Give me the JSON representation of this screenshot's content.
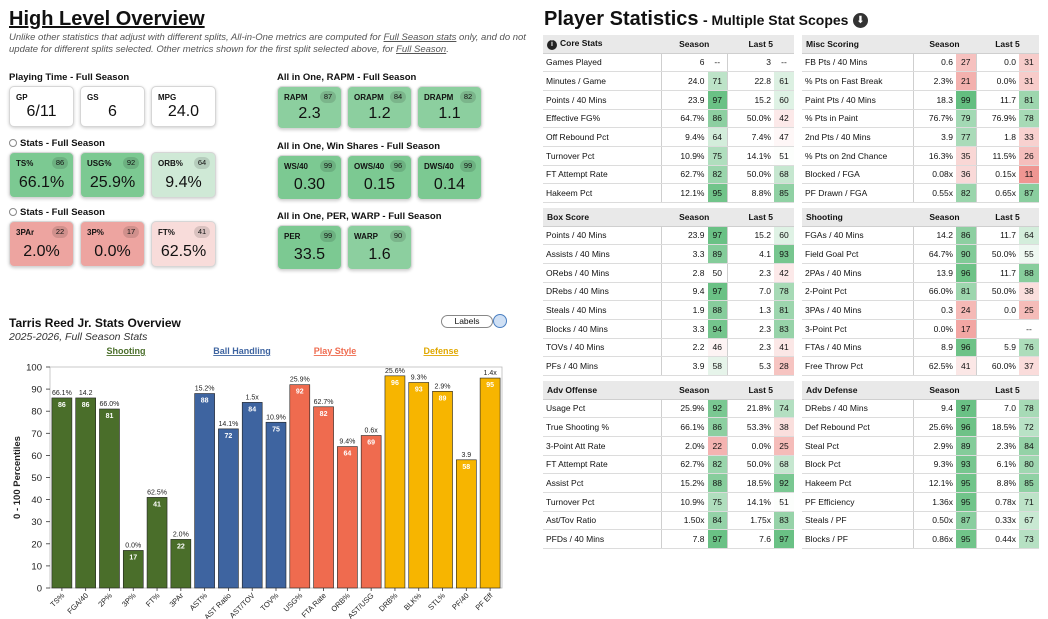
{
  "left": {
    "title": "High Level Overview",
    "note_parts": [
      "Unlike other statistics that adjust with different splits, All-in-One metrics are computed for ",
      "Full Season stats",
      " only, and do not update for different splits selected. Other metrics shown for the first split selected above, for ",
      "Full Season",
      "."
    ],
    "playing_time": {
      "label": "Playing Time - Full Season",
      "cards": [
        {
          "label": "GP",
          "value": "6/11"
        },
        {
          "label": "GS",
          "value": "6"
        },
        {
          "label": "MPG",
          "value": "24.0"
        }
      ]
    },
    "stats1": {
      "label": "Stats - Full Season",
      "cards": [
        {
          "label": "TS%",
          "pct": "86",
          "value": "66.1%"
        },
        {
          "label": "USG%",
          "pct": "92",
          "value": "25.9%"
        },
        {
          "label": "ORB%",
          "pct": "64",
          "value": "9.4%"
        }
      ]
    },
    "stats2": {
      "label": "Stats - Full Season",
      "cards": [
        {
          "label": "3PAr",
          "pct": "22",
          "value": "2.0%"
        },
        {
          "label": "3P%",
          "pct": "17",
          "value": "0.0%"
        },
        {
          "label": "FT%",
          "pct": "41",
          "value": "62.5%"
        }
      ]
    },
    "rapm": {
      "label": "All in One, RAPM - Full Season",
      "cards": [
        {
          "label": "RAPM",
          "pct": "87",
          "value": "2.3"
        },
        {
          "label": "ORAPM",
          "pct": "84",
          "value": "1.2"
        },
        {
          "label": "DRAPM",
          "pct": "82",
          "value": "1.1"
        }
      ]
    },
    "ws": {
      "label": "All in One, Win Shares - Full Season",
      "cards": [
        {
          "label": "WS/40",
          "pct": "99",
          "value": "0.30"
        },
        {
          "label": "OWS/40",
          "pct": "96",
          "value": "0.15"
        },
        {
          "label": "DWS/40",
          "pct": "99",
          "value": "0.14"
        }
      ]
    },
    "per": {
      "label": "All in One, PER, WARP - Full Season",
      "cards": [
        {
          "label": "PER",
          "pct": "99",
          "value": "33.5"
        },
        {
          "label": "WARP",
          "pct": "90",
          "value": "1.6"
        }
      ]
    }
  },
  "chart_data": {
    "type": "bar",
    "title": "Tarris Reed Jr. Stats Overview",
    "subtitle": "2025-2026, Full Season Stats",
    "ylabel": "0 - 100 Percentiles",
    "xlabel": "",
    "ylim": [
      0,
      100
    ],
    "yticks": [
      0,
      10,
      20,
      30,
      40,
      50,
      60,
      70,
      80,
      90,
      100
    ],
    "labels_toggle": "Labels",
    "groups": [
      {
        "name": "Shooting",
        "color": "#4a6e2a",
        "label_color": "#4a6e2a"
      },
      {
        "name": "Ball Handling",
        "color": "#3e64a0",
        "label_color": "#3e64a0"
      },
      {
        "name": "Play Style",
        "color": "#ef6b4f",
        "label_color": "#ef6b4f"
      },
      {
        "name": "Defense",
        "color": "#f7b500",
        "label_color": "#e0a800"
      }
    ],
    "categories": [
      "TS%",
      "FGA/40",
      "2P%",
      "3P%",
      "FT%",
      "3PAr",
      "AST%",
      "AST Ratio",
      "AST/TOV",
      "TOV%",
      "USG%",
      "FTA Rate",
      "ORB%",
      "AST/USG",
      "DRB%",
      "BLK%",
      "STL%",
      "PF/40",
      "PF Eff"
    ],
    "group_index": [
      0,
      0,
      0,
      0,
      0,
      0,
      1,
      1,
      1,
      1,
      2,
      2,
      2,
      2,
      3,
      3,
      3,
      3,
      3
    ],
    "values": [
      86,
      86,
      81,
      17,
      41,
      22,
      88,
      72,
      84,
      75,
      92,
      82,
      64,
      69,
      96,
      93,
      89,
      58,
      95
    ],
    "raw_labels": [
      "66.1%",
      "14.2",
      "66.0%",
      "0.0%",
      "62.5%",
      "2.0%",
      "15.2%",
      "14.1%",
      "1.5x",
      "10.9%",
      "25.9%",
      "62.7%",
      "9.4%",
      "0.6x",
      "25.6%",
      "9.3%",
      "2.9%",
      "3.9",
      "1.4x"
    ]
  },
  "right": {
    "title": "Player Statistics",
    "subtitle": "- Multiple Stat Scopes",
    "download_icon": "download-icon",
    "tables": [
      {
        "title": "Core Stats",
        "info_icon": true,
        "season": "Season",
        "last5": "Last 5",
        "rows": [
          [
            "Games Played",
            "6",
            "",
            "3",
            ""
          ],
          [
            "Minutes / Game",
            "24.0",
            "71",
            "22.8",
            "61"
          ],
          [
            "Points / 40 Mins",
            "23.9",
            "97",
            "15.2",
            "60"
          ],
          [
            "Effective FG%",
            "64.7%",
            "86",
            "50.0%",
            "42"
          ],
          [
            "Off Rebound Pct",
            "9.4%",
            "64",
            "7.4%",
            "47"
          ],
          [
            "Turnover Pct",
            "10.9%",
            "75",
            "14.1%",
            "51"
          ],
          [
            "FT Attempt Rate",
            "62.7%",
            "82",
            "50.0%",
            "68"
          ],
          [
            "Hakeem Pct",
            "12.1%",
            "95",
            "8.8%",
            "85"
          ]
        ]
      },
      {
        "title": "Misc Scoring",
        "info_icon": false,
        "season": "Season",
        "last5": "Last 5",
        "rows": [
          [
            "FB Pts / 40 Mins",
            "0.6",
            "27",
            "0.0",
            "31"
          ],
          [
            "% Pts on Fast Break",
            "2.3%",
            "21",
            "0.0%",
            "31"
          ],
          [
            "Paint Pts / 40 Mins",
            "18.3",
            "99",
            "11.7",
            "81"
          ],
          [
            "% Pts in Paint",
            "76.7%",
            "79",
            "76.9%",
            "78"
          ],
          [
            "2nd Pts / 40 Mins",
            "3.9",
            "77",
            "1.8",
            "33"
          ],
          [
            "% Pts on 2nd Chance",
            "16.3%",
            "35",
            "11.5%",
            "26"
          ],
          [
            "Blocked / FGA",
            "0.08x",
            "36",
            "0.15x",
            "11"
          ],
          [
            "PF Drawn / FGA",
            "0.55x",
            "82",
            "0.65x",
            "87"
          ]
        ]
      },
      {
        "title": "Box Score",
        "info_icon": false,
        "season": "Season",
        "last5": "Last 5",
        "rows": [
          [
            "Points / 40 Mins",
            "23.9",
            "97",
            "15.2",
            "60"
          ],
          [
            "Assists / 40 Mins",
            "3.3",
            "89",
            "4.1",
            "93"
          ],
          [
            "ORebs / 40 Mins",
            "2.8",
            "50",
            "2.3",
            "42"
          ],
          [
            "DRebs / 40 Mins",
            "9.4",
            "97",
            "7.0",
            "78"
          ],
          [
            "Steals / 40 Mins",
            "1.9",
            "88",
            "1.3",
            "81"
          ],
          [
            "Blocks / 40 Mins",
            "3.3",
            "94",
            "2.3",
            "83"
          ],
          [
            "TOVs / 40 Mins",
            "2.2",
            "46",
            "2.3",
            "41"
          ],
          [
            "PFs / 40 Mins",
            "3.9",
            "58",
            "5.3",
            "28"
          ]
        ]
      },
      {
        "title": "Shooting",
        "info_icon": false,
        "season": "Season",
        "last5": "Last 5",
        "rows": [
          [
            "FGAs / 40 Mins",
            "14.2",
            "86",
            "11.7",
            "64"
          ],
          [
            "Field Goal Pct",
            "64.7%",
            "90",
            "50.0%",
            "55"
          ],
          [
            "2PAs / 40 Mins",
            "13.9",
            "96",
            "11.7",
            "88"
          ],
          [
            "2-Point Pct",
            "66.0%",
            "81",
            "50.0%",
            "38"
          ],
          [
            "3PAs / 40 Mins",
            "0.3",
            "24",
            "0.0",
            "25"
          ],
          [
            "3-Point Pct",
            "0.0%",
            "17",
            "",
            "--"
          ],
          [
            "FTAs / 40 Mins",
            "8.9",
            "96",
            "5.9",
            "76"
          ],
          [
            "Free Throw Pct",
            "62.5%",
            "41",
            "60.0%",
            "37"
          ]
        ]
      },
      {
        "title": "Adv Offense",
        "info_icon": false,
        "season": "Season",
        "last5": "Last 5",
        "rows": [
          [
            "Usage Pct",
            "25.9%",
            "92",
            "21.8%",
            "74"
          ],
          [
            "True Shooting %",
            "66.1%",
            "86",
            "53.3%",
            "38"
          ],
          [
            "3-Point Att Rate",
            "2.0%",
            "22",
            "0.0%",
            "25"
          ],
          [
            "FT Attempt Rate",
            "62.7%",
            "82",
            "50.0%",
            "68"
          ],
          [
            "Assist Pct",
            "15.2%",
            "88",
            "18.5%",
            "92"
          ],
          [
            "Turnover Pct",
            "10.9%",
            "75",
            "14.1%",
            "51"
          ],
          [
            "Ast/Tov Ratio",
            "1.50x",
            "84",
            "1.75x",
            "83"
          ],
          [
            "PFDs / 40 Mins",
            "7.8",
            "97",
            "7.6",
            "97"
          ]
        ]
      },
      {
        "title": "Adv Defense",
        "info_icon": false,
        "season": "Season",
        "last5": "Last 5",
        "rows": [
          [
            "DRebs / 40 Mins",
            "9.4",
            "97",
            "7.0",
            "78"
          ],
          [
            "Def Rebound Pct",
            "25.6%",
            "96",
            "18.5%",
            "72"
          ],
          [
            "Steal Pct",
            "2.9%",
            "89",
            "2.3%",
            "84"
          ],
          [
            "Block Pct",
            "9.3%",
            "93",
            "6.1%",
            "80"
          ],
          [
            "Hakeem Pct",
            "12.1%",
            "95",
            "8.8%",
            "85"
          ],
          [
            "PF Efficiency",
            "1.36x",
            "95",
            "0.78x",
            "71"
          ],
          [
            "Steals / PF",
            "0.50x",
            "87",
            "0.33x",
            "67"
          ],
          [
            "Blocks / PF",
            "0.86x",
            "95",
            "0.44x",
            "73"
          ]
        ]
      }
    ]
  }
}
